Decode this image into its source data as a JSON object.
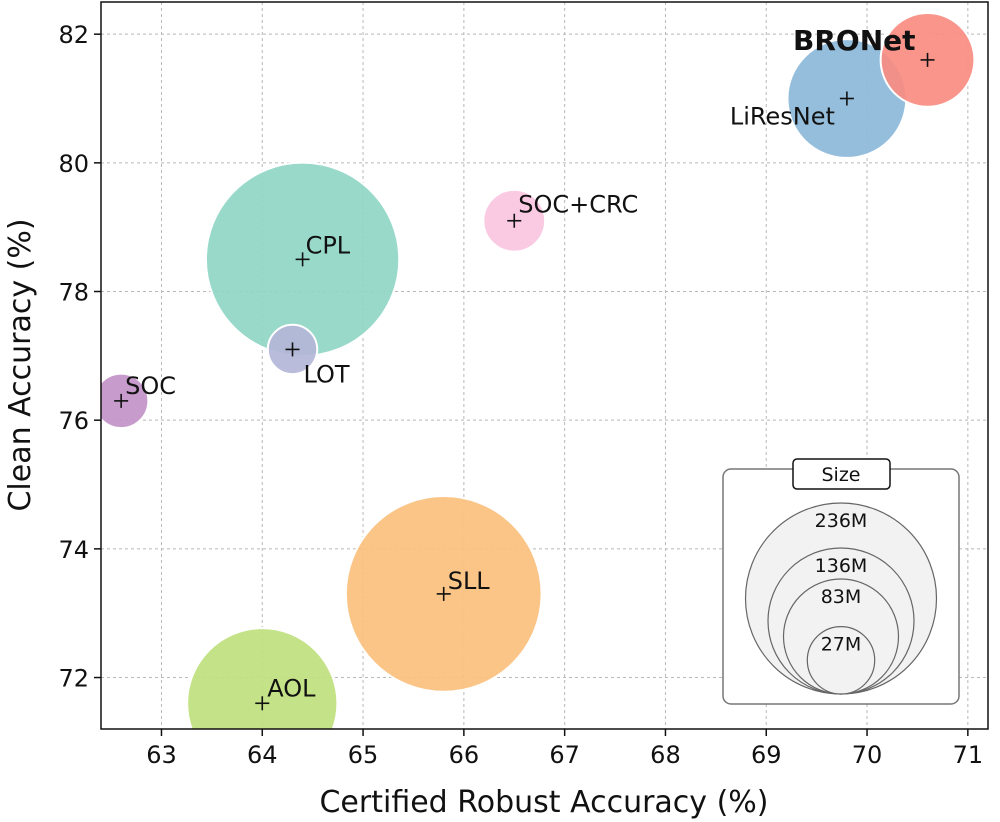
{
  "chart_data": {
    "type": "scatter",
    "title": "",
    "xlabel": "Certified Robust Accuracy (%)",
    "ylabel": "Clean Accuracy (%)",
    "xlim": [
      62.4,
      71.2
    ],
    "ylim": [
      71.2,
      82.5
    ],
    "xticks": [
      63,
      64,
      65,
      66,
      67,
      68,
      69,
      70,
      71
    ],
    "yticks": [
      72,
      74,
      76,
      78,
      80,
      82
    ],
    "grid": true,
    "points": [
      {
        "name": "SOC",
        "x": 62.6,
        "y": 76.3,
        "size_m": 15,
        "color": "#c294c8"
      },
      {
        "name": "CPL",
        "x": 64.4,
        "y": 78.5,
        "size_m": 230,
        "color": "#8fd6c6"
      },
      {
        "name": "LOT",
        "x": 64.3,
        "y": 77.1,
        "size_m": 12,
        "color": "#b4b6d8"
      },
      {
        "name": "SOC+CRC",
        "x": 66.5,
        "y": 79.1,
        "size_m": 20,
        "color": "#f9c6df"
      },
      {
        "name": "SLL",
        "x": 65.8,
        "y": 73.3,
        "size_m": 236,
        "color": "#fbc07e"
      },
      {
        "name": "AOL",
        "x": 64.0,
        "y": 71.6,
        "size_m": 136,
        "color": "#bfe07d"
      },
      {
        "name": "LiResNet",
        "x": 69.8,
        "y": 81.0,
        "size_m": 83,
        "color": "#8cb8da"
      },
      {
        "name": "BRONet",
        "x": 70.6,
        "y": 81.6,
        "size_m": 50,
        "color": "#f98c80",
        "bold": true
      }
    ],
    "size_legend": {
      "title": "Size",
      "entries": [
        {
          "label": "236M",
          "value": 236
        },
        {
          "label": "136M",
          "value": 136
        },
        {
          "label": "83M",
          "value": 83
        },
        {
          "label": "27M",
          "value": 27
        }
      ]
    }
  }
}
